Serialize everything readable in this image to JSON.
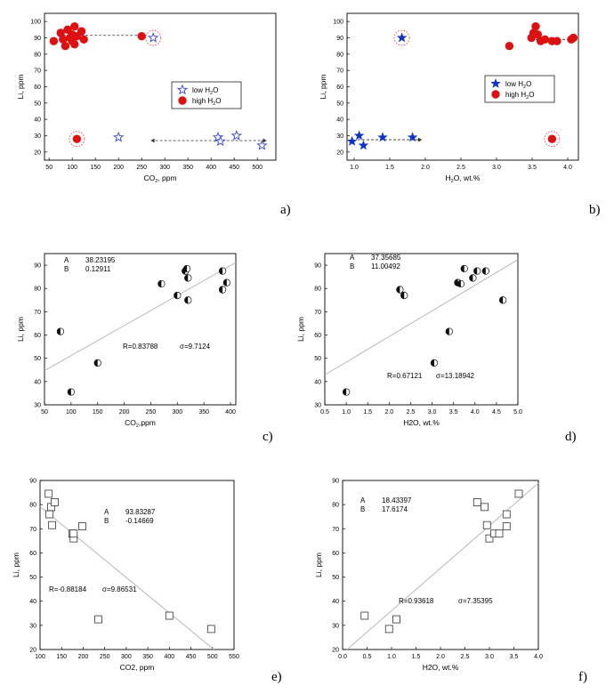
{
  "chart_data": [
    {
      "panel": "a)",
      "type": "scatter",
      "xlabel": "CO2, ppm",
      "ylabel": "Li, ppm",
      "xlim": [
        40,
        540
      ],
      "ylim": [
        15,
        105
      ],
      "xticks": [
        50,
        100,
        150,
        200,
        250,
        300,
        350,
        400,
        450,
        500
      ],
      "yticks": [
        20,
        30,
        40,
        50,
        60,
        70,
        80,
        90,
        100
      ],
      "legend": {
        "position": "right",
        "items": [
          {
            "label": "low H2O",
            "marker": "star-open",
            "color": "#3344cc"
          },
          {
            "label": "high H2O",
            "marker": "circle-filled",
            "color": "#dd1111"
          }
        ]
      },
      "series": [
        {
          "name": "low H2O",
          "marker": "star-open",
          "color": "#3344cc",
          "x": [
            275,
            200,
            415,
            420,
            455,
            510
          ],
          "y": [
            90,
            29,
            29,
            26.5,
            30,
            24
          ]
        },
        {
          "name": "high H2O",
          "marker": "circle-filled",
          "color": "#dd1111",
          "x": [
            60,
            75,
            80,
            85,
            90,
            95,
            100,
            100,
            105,
            105,
            110,
            120,
            125,
            250,
            110
          ],
          "y": [
            88,
            93,
            89,
            85,
            95,
            90,
            88,
            92,
            86,
            97,
            91,
            94,
            89,
            91,
            28
          ]
        }
      ],
      "arrows": [
        {
          "from": [
            250,
            91.5
          ],
          "to": [
            75,
            91.5
          ]
        },
        {
          "from": [
            270,
            27
          ],
          "to": [
            520,
            27
          ],
          "both": true
        }
      ],
      "highlights": [
        {
          "x": 275,
          "y": 90
        },
        {
          "x": 110,
          "y": 28
        }
      ]
    },
    {
      "panel": "b)",
      "type": "scatter",
      "xlabel": "H2O, wt.%",
      "ylabel": "Li, ppm",
      "xlim": [
        0.9,
        4.15
      ],
      "ylim": [
        15,
        105
      ],
      "xticks": [
        1.0,
        1.5,
        2.0,
        2.5,
        3.0,
        3.5,
        4.0
      ],
      "yticks": [
        20,
        30,
        40,
        50,
        60,
        70,
        80,
        90,
        100
      ],
      "legend": {
        "position": "right",
        "items": [
          {
            "label": "low H2O",
            "marker": "star-filled",
            "color": "#1133cc"
          },
          {
            "label": "high H2O",
            "marker": "circle-filled",
            "color": "#dd1111"
          }
        ]
      },
      "series": [
        {
          "name": "low H2O",
          "marker": "star-filled",
          "color": "#1133cc",
          "x": [
            0.97,
            1.07,
            1.13,
            1.4,
            1.82,
            1.67
          ],
          "y": [
            26.5,
            30,
            24,
            29,
            29,
            90
          ]
        },
        {
          "name": "high H2O",
          "marker": "circle-filled",
          "color": "#dd1111",
          "x": [
            3.18,
            3.49,
            3.52,
            3.55,
            3.58,
            3.62,
            3.68,
            3.78,
            3.85,
            4.05,
            4.08,
            3.78
          ],
          "y": [
            85,
            90,
            93,
            97,
            92,
            88,
            89,
            88,
            88,
            89,
            90,
            28
          ]
        }
      ],
      "arrows": [
        {
          "from": [
            3.55,
            89
          ],
          "to": [
            4.05,
            89
          ],
          "both": true
        },
        {
          "from": [
            1.05,
            27.5
          ],
          "to": [
            1.95,
            27.5
          ]
        }
      ],
      "highlights": [
        {
          "x": 1.67,
          "y": 90
        },
        {
          "x": 3.78,
          "y": 28
        }
      ]
    },
    {
      "panel": "c)",
      "type": "scatter",
      "xlabel": "CO2,ppm",
      "ylabel": "Li, ppm",
      "xlim": [
        50,
        410
      ],
      "ylim": [
        30,
        95
      ],
      "xticks": [
        50,
        100,
        150,
        200,
        250,
        300,
        350,
        400
      ],
      "yticks": [
        30,
        40,
        50,
        60,
        70,
        80,
        90
      ],
      "fit": {
        "A": "38.23195",
        "B": "0.12911",
        "a": 38.23195,
        "b": 0.12911,
        "R": "R=0.83788",
        "sigma": "σ=9.7124"
      },
      "series": [
        {
          "name": "data",
          "marker": "half-circle",
          "x": [
            80,
            100,
            150,
            270,
            300,
            315,
            318,
            320,
            320,
            385,
            385,
            393
          ],
          "y": [
            61.5,
            35.5,
            48,
            82,
            77,
            87.5,
            88.5,
            84.5,
            75,
            87.5,
            79.5,
            82.5
          ]
        }
      ]
    },
    {
      "panel": "d)",
      "type": "scatter",
      "xlabel": "H2O, wt.%",
      "ylabel": "Li, ppm",
      "xlim": [
        0.5,
        5.0
      ],
      "ylim": [
        30,
        95
      ],
      "xticks": [
        0.5,
        1.0,
        1.5,
        2.0,
        2.5,
        3.0,
        3.5,
        4.0,
        4.5,
        5.0
      ],
      "yticks": [
        30,
        40,
        50,
        60,
        70,
        80,
        90
      ],
      "fit": {
        "A": "37.35685",
        "B": "11.00492",
        "a": 37.35685,
        "b": 11.00492,
        "R": "R=0.67121",
        "sigma": "σ=13.18942"
      },
      "series": [
        {
          "name": "data",
          "marker": "half-circle",
          "x": [
            1.0,
            2.25,
            2.35,
            3.05,
            3.4,
            3.6,
            3.67,
            3.75,
            3.95,
            4.05,
            4.25,
            4.65
          ],
          "y": [
            35.5,
            79.5,
            77,
            48,
            61.5,
            82.5,
            82,
            88.5,
            84.5,
            87.5,
            87.5,
            75
          ]
        }
      ]
    },
    {
      "panel": "e)",
      "type": "scatter",
      "xlabel": "CO2, ppm",
      "ylabel": "Li, ppm",
      "xlim": [
        100,
        550
      ],
      "ylim": [
        20,
        90
      ],
      "xticks": [
        100,
        150,
        200,
        250,
        300,
        350,
        400,
        450,
        500,
        550
      ],
      "yticks": [
        20,
        30,
        40,
        50,
        60,
        70,
        80,
        90
      ],
      "fit": {
        "A": "93.83287",
        "B": "-0.14669",
        "a": 93.83287,
        "b": -0.14669,
        "R": "R=-0.88184",
        "sigma": "σ=9.86531"
      },
      "series": [
        {
          "name": "data",
          "marker": "square-open",
          "x": [
            120,
            122,
            126,
            128,
            134,
            175,
            178,
            178,
            198,
            235,
            400,
            497
          ],
          "y": [
            84.5,
            76,
            79,
            71.5,
            81,
            68,
            66,
            68,
            71,
            32.5,
            34,
            28.5
          ]
        }
      ]
    },
    {
      "panel": "f)",
      "type": "scatter",
      "xlabel": "H2O, wt.%",
      "ylabel": "Li, ppm",
      "xlim": [
        0.0,
        4.0
      ],
      "ylim": [
        20,
        90
      ],
      "xticks": [
        0.0,
        0.5,
        1.0,
        1.5,
        2.0,
        2.5,
        3.0,
        3.5,
        4.0
      ],
      "yticks": [
        20,
        30,
        40,
        50,
        60,
        70,
        80,
        90
      ],
      "fit": {
        "A": "18.43397",
        "B": "17.6174",
        "a": 18.43397,
        "b": 17.6174,
        "R": "R=0.93618",
        "sigma": "σ=7.35395"
      },
      "series": [
        {
          "name": "data",
          "marker": "square-open",
          "x": [
            0.45,
            0.95,
            1.1,
            2.75,
            2.9,
            2.95,
            3.0,
            3.1,
            3.2,
            3.35,
            3.35,
            3.6
          ],
          "y": [
            34,
            28.5,
            32.5,
            81,
            79,
            71.5,
            66,
            68,
            68,
            76,
            71,
            84.5
          ]
        }
      ]
    }
  ]
}
